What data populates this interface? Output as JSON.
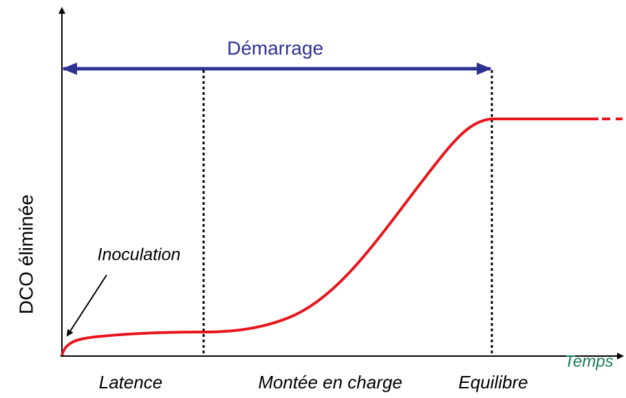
{
  "title": "Démarrage",
  "y_axis_label": "DCO éliminée",
  "x_axis_label": "Temps",
  "annotation": "Inoculation",
  "phases": [
    "Latence",
    "Montée en charge",
    "Equilibre"
  ]
}
